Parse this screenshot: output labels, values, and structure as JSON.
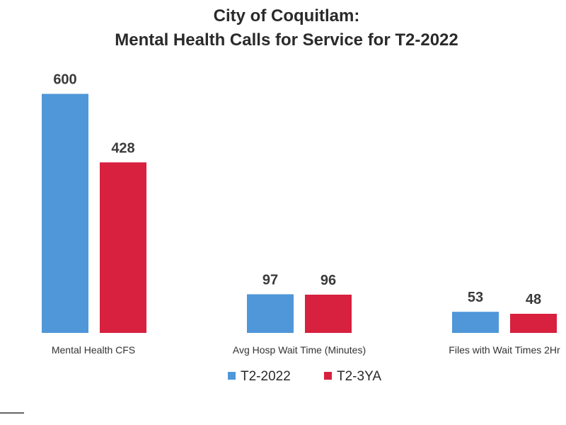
{
  "chart_data": {
    "type": "bar",
    "title": [
      "City of Coquitlam:",
      "Mental Health Calls for Service for T2-2022"
    ],
    "categories": [
      "Mental Health CFS",
      "Avg Hosp Wait Time (Minutes)",
      "Files with Wait Times 2Hr"
    ],
    "series": [
      {
        "name": "T2-2022",
        "values": [
          600,
          97,
          53
        ],
        "color": "#4f97d8"
      },
      {
        "name": "T2-3YA",
        "values": [
          428,
          96,
          48
        ],
        "color": "#d8203f"
      }
    ],
    "xlabel": "",
    "ylabel": "",
    "ylim": [
      0,
      640
    ],
    "grid": false,
    "legend": "bottom"
  }
}
